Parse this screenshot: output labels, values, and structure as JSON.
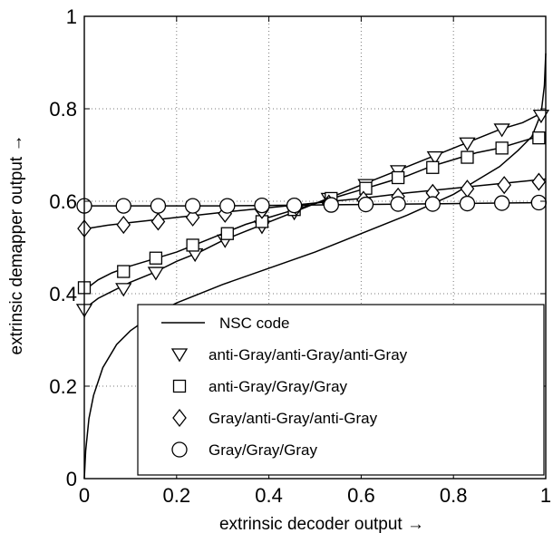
{
  "chart_data": {
    "type": "line",
    "title": "",
    "xlabel": "extrinsic decoder output →",
    "ylabel": "extrinsic demapper output →",
    "xlim": [
      0,
      1
    ],
    "ylim": [
      0,
      1
    ],
    "xticks": [
      "0",
      "0.2",
      "0.4",
      "0.6",
      "0.8",
      "1"
    ],
    "yticks": [
      "0",
      "0.2",
      "0.4",
      "0.6",
      "0.8",
      "1"
    ],
    "grid": true,
    "legend_position": "bottom-right",
    "series": [
      {
        "name": "NSC code",
        "marker": "none",
        "x": [
          0,
          0.003,
          0.01,
          0.02,
          0.04,
          0.07,
          0.1,
          0.15,
          0.2,
          0.3,
          0.4,
          0.5,
          0.6,
          0.7,
          0.8,
          0.85,
          0.9,
          0.94,
          0.97,
          0.99,
          0.997,
          1
        ],
        "y": [
          0,
          0.06,
          0.13,
          0.18,
          0.24,
          0.29,
          0.32,
          0.355,
          0.38,
          0.42,
          0.455,
          0.49,
          0.53,
          0.57,
          0.615,
          0.645,
          0.675,
          0.71,
          0.74,
          0.79,
          0.85,
          0.92
        ]
      },
      {
        "name": "anti-Gray/anti-Gray/anti-Gray",
        "marker": "triangle-down",
        "x": [
          0,
          0.01,
          0.03,
          0.06,
          0.1,
          0.15,
          0.2,
          0.25,
          0.3,
          0.35,
          0.4,
          0.45,
          0.5,
          0.55,
          0.6,
          0.65,
          0.7,
          0.75,
          0.8,
          0.85,
          0.9,
          0.95,
          0.98,
          1
        ],
        "y": [
          0.35,
          0.375,
          0.39,
          0.405,
          0.425,
          0.445,
          0.47,
          0.49,
          0.515,
          0.535,
          0.555,
          0.575,
          0.595,
          0.615,
          0.635,
          0.655,
          0.675,
          0.695,
          0.715,
          0.735,
          0.755,
          0.77,
          0.785,
          0.795
        ],
        "markers_x": [
          0,
          0.085,
          0.155,
          0.24,
          0.305,
          0.385,
          0.455,
          0.53,
          0.61,
          0.68,
          0.76,
          0.83,
          0.905,
          0.99
        ],
        "markers_y": [
          0.365,
          0.41,
          0.445,
          0.485,
          0.515,
          0.545,
          0.575,
          0.605,
          0.635,
          0.665,
          0.695,
          0.725,
          0.755,
          0.785
        ]
      },
      {
        "name": "anti-Gray/Gray/Gray",
        "marker": "square",
        "x": [
          0,
          0.01,
          0.03,
          0.06,
          0.1,
          0.15,
          0.2,
          0.25,
          0.3,
          0.35,
          0.4,
          0.45,
          0.5,
          0.55,
          0.6,
          0.65,
          0.7,
          0.75,
          0.8,
          0.85,
          0.9,
          0.95,
          1
        ],
        "y": [
          0.4,
          0.415,
          0.43,
          0.445,
          0.46,
          0.475,
          0.49,
          0.51,
          0.53,
          0.55,
          0.565,
          0.58,
          0.595,
          0.61,
          0.625,
          0.64,
          0.655,
          0.675,
          0.69,
          0.705,
          0.715,
          0.73,
          0.745
        ],
        "markers_x": [
          0,
          0.085,
          0.155,
          0.235,
          0.31,
          0.385,
          0.455,
          0.535,
          0.61,
          0.68,
          0.755,
          0.83,
          0.905,
          0.985
        ],
        "markers_y": [
          0.413,
          0.448,
          0.477,
          0.505,
          0.53,
          0.556,
          0.582,
          0.606,
          0.628,
          0.651,
          0.673,
          0.695,
          0.715,
          0.737
        ]
      },
      {
        "name": "Gray/anti-Gray/anti-Gray",
        "marker": "diamond",
        "x": [
          0,
          0.05,
          0.1,
          0.2,
          0.3,
          0.4,
          0.5,
          0.6,
          0.7,
          0.8,
          0.9,
          1
        ],
        "y": [
          0.54,
          0.548,
          0.554,
          0.565,
          0.576,
          0.586,
          0.596,
          0.606,
          0.618,
          0.628,
          0.638,
          0.648
        ],
        "markers_x": [
          0,
          0.085,
          0.16,
          0.235,
          0.305,
          0.385,
          0.46,
          0.53,
          0.605,
          0.68,
          0.755,
          0.83,
          0.91,
          0.985
        ],
        "markers_y": [
          0.541,
          0.549,
          0.556,
          0.565,
          0.573,
          0.581,
          0.588,
          0.595,
          0.603,
          0.61,
          0.618,
          0.627,
          0.635,
          0.642
        ]
      },
      {
        "name": "Gray/Gray/Gray",
        "marker": "circle",
        "x": [
          0,
          0.1,
          0.2,
          0.3,
          0.4,
          0.5,
          0.6,
          0.7,
          0.8,
          0.9,
          1
        ],
        "y": [
          0.59,
          0.59,
          0.59,
          0.59,
          0.591,
          0.592,
          0.593,
          0.594,
          0.595,
          0.596,
          0.597
        ],
        "markers_x": [
          0,
          0.085,
          0.16,
          0.235,
          0.31,
          0.385,
          0.455,
          0.535,
          0.61,
          0.68,
          0.755,
          0.83,
          0.905,
          0.985
        ],
        "markers_y": [
          0.59,
          0.59,
          0.59,
          0.59,
          0.59,
          0.591,
          0.591,
          0.592,
          0.593,
          0.594,
          0.594,
          0.595,
          0.596,
          0.597
        ]
      }
    ]
  }
}
